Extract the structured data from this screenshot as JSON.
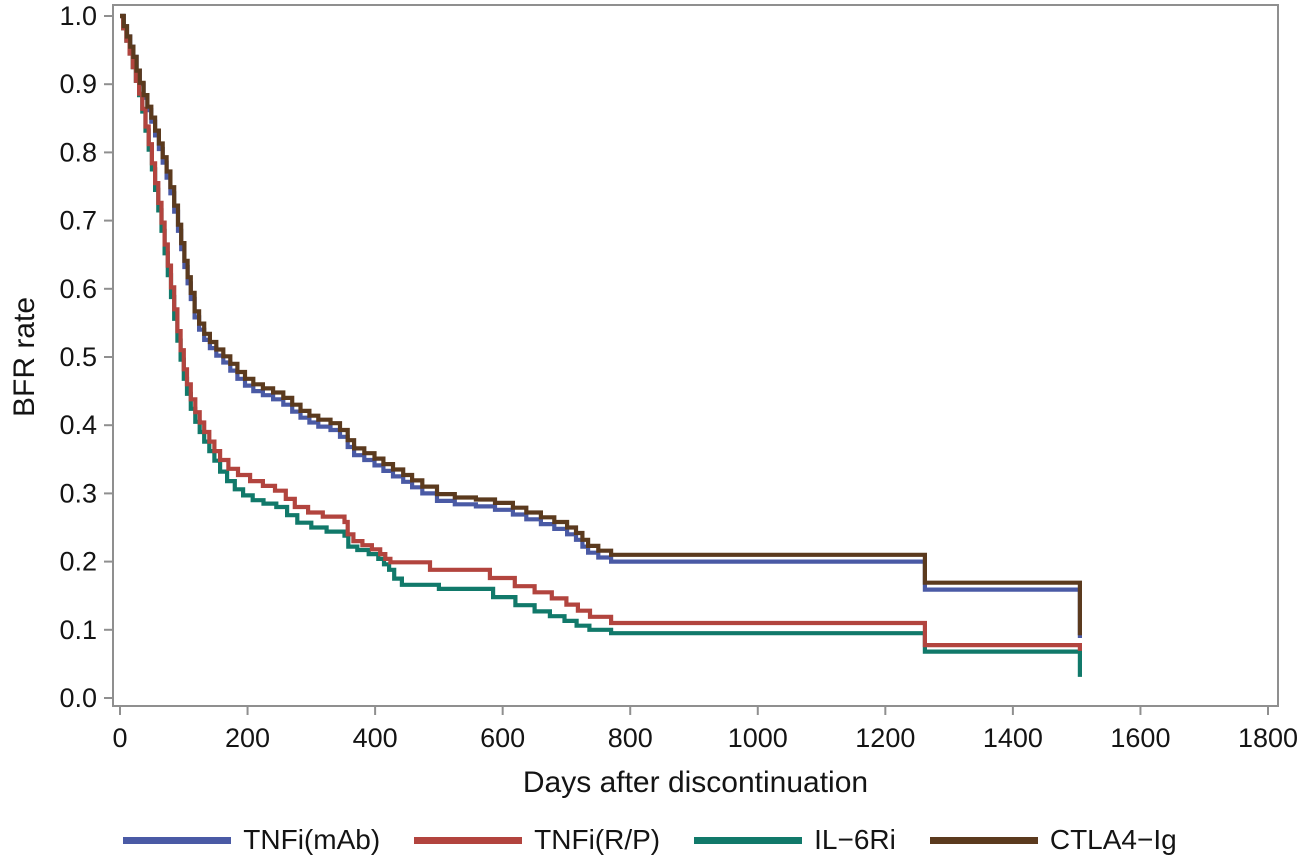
{
  "figure": {
    "background_color": "#ffffff",
    "axis_line_color": "#8f8f8f",
    "tick_text_color": "#141414"
  },
  "chart_data": {
    "type": "line",
    "subtype": "kaplan-meier-step-curves",
    "title": "",
    "xlabel": "Days after discontinuation",
    "ylabel": "BFR rate",
    "xlim": [
      0,
      1800
    ],
    "ylim": [
      0.0,
      1.0
    ],
    "x_tick_labels": [
      "0",
      "200",
      "400",
      "600",
      "800",
      "1000",
      "1200",
      "1400",
      "1600",
      "1800"
    ],
    "x_tick_values": [
      0,
      200,
      400,
      600,
      800,
      1000,
      1200,
      1400,
      1600,
      1800
    ],
    "y_tick_labels": [
      "0.0",
      "0.1",
      "0.2",
      "0.3",
      "0.4",
      "0.5",
      "0.6",
      "0.7",
      "0.8",
      "0.9",
      "1.0"
    ],
    "y_tick_values": [
      0.0,
      0.1,
      0.2,
      0.3,
      0.4,
      0.5,
      0.6,
      0.7,
      0.8,
      0.9,
      1.0
    ],
    "grid": false,
    "legend_position": "bottom",
    "draw_order": [
      0,
      2,
      1,
      3
    ],
    "series": [
      {
        "name": "TNFi(mAb)",
        "color": "#4a5aa5",
        "points": [
          [
            0,
            1.0
          ],
          [
            6,
            0.985
          ],
          [
            11,
            0.97
          ],
          [
            16,
            0.955
          ],
          [
            21,
            0.94
          ],
          [
            26,
            0.92
          ],
          [
            31,
            0.9
          ],
          [
            37,
            0.88
          ],
          [
            43,
            0.862
          ],
          [
            49,
            0.845
          ],
          [
            55,
            0.825
          ],
          [
            61,
            0.805
          ],
          [
            67,
            0.785
          ],
          [
            73,
            0.763
          ],
          [
            79,
            0.74
          ],
          [
            85,
            0.713
          ],
          [
            91,
            0.685
          ],
          [
            96,
            0.658
          ],
          [
            101,
            0.632
          ],
          [
            106,
            0.608
          ],
          [
            111,
            0.585
          ],
          [
            117,
            0.558
          ],
          [
            124,
            0.54
          ],
          [
            132,
            0.525
          ],
          [
            141,
            0.513
          ],
          [
            151,
            0.502
          ],
          [
            162,
            0.492
          ],
          [
            173,
            0.48
          ],
          [
            184,
            0.468
          ],
          [
            196,
            0.458
          ],
          [
            209,
            0.45
          ],
          [
            224,
            0.444
          ],
          [
            240,
            0.438
          ],
          [
            256,
            0.43
          ],
          [
            270,
            0.42
          ],
          [
            283,
            0.411
          ],
          [
            297,
            0.404
          ],
          [
            311,
            0.398
          ],
          [
            330,
            0.393
          ],
          [
            345,
            0.383
          ],
          [
            357,
            0.368
          ],
          [
            367,
            0.356
          ],
          [
            383,
            0.349
          ],
          [
            399,
            0.341
          ],
          [
            413,
            0.333
          ],
          [
            428,
            0.325
          ],
          [
            444,
            0.317
          ],
          [
            458,
            0.309
          ],
          [
            474,
            0.3
          ],
          [
            497,
            0.289
          ],
          [
            525,
            0.284
          ],
          [
            558,
            0.281
          ],
          [
            588,
            0.276
          ],
          [
            616,
            0.269
          ],
          [
            637,
            0.262
          ],
          [
            660,
            0.255
          ],
          [
            681,
            0.248
          ],
          [
            701,
            0.24
          ],
          [
            715,
            0.232
          ],
          [
            725,
            0.222
          ],
          [
            734,
            0.213
          ],
          [
            750,
            0.206
          ],
          [
            770,
            0.2
          ],
          [
            1262,
            0.159
          ],
          [
            1505,
            0.088
          ]
        ]
      },
      {
        "name": "TNFi(R/P)",
        "color": "#b2443e",
        "points": [
          [
            0,
            1.0
          ],
          [
            5,
            0.982
          ],
          [
            10,
            0.964
          ],
          [
            15,
            0.945
          ],
          [
            20,
            0.925
          ],
          [
            25,
            0.905
          ],
          [
            30,
            0.886
          ],
          [
            35,
            0.864
          ],
          [
            40,
            0.838
          ],
          [
            45,
            0.812
          ],
          [
            50,
            0.784
          ],
          [
            55,
            0.755
          ],
          [
            60,
            0.726
          ],
          [
            65,
            0.697
          ],
          [
            70,
            0.665
          ],
          [
            75,
            0.634
          ],
          [
            80,
            0.602
          ],
          [
            85,
            0.57
          ],
          [
            90,
            0.538
          ],
          [
            95,
            0.51
          ],
          [
            100,
            0.482
          ],
          [
            105,
            0.46
          ],
          [
            111,
            0.438
          ],
          [
            118,
            0.419
          ],
          [
            125,
            0.404
          ],
          [
            132,
            0.39
          ],
          [
            140,
            0.376
          ],
          [
            148,
            0.362
          ],
          [
            157,
            0.349
          ],
          [
            170,
            0.336
          ],
          [
            185,
            0.327
          ],
          [
            204,
            0.318
          ],
          [
            224,
            0.311
          ],
          [
            243,
            0.304
          ],
          [
            260,
            0.292
          ],
          [
            274,
            0.28
          ],
          [
            295,
            0.272
          ],
          [
            318,
            0.266
          ],
          [
            352,
            0.258
          ],
          [
            357,
            0.24
          ],
          [
            366,
            0.23
          ],
          [
            380,
            0.224
          ],
          [
            395,
            0.218
          ],
          [
            408,
            0.211
          ],
          [
            416,
            0.204
          ],
          [
            424,
            0.199
          ],
          [
            486,
            0.188
          ],
          [
            580,
            0.176
          ],
          [
            619,
            0.164
          ],
          [
            650,
            0.155
          ],
          [
            677,
            0.146
          ],
          [
            700,
            0.137
          ],
          [
            718,
            0.128
          ],
          [
            737,
            0.119
          ],
          [
            770,
            0.11
          ],
          [
            1262,
            0.0775
          ],
          [
            1505,
            0.069
          ]
        ]
      },
      {
        "name": "IL−6Ri",
        "color": "#11796a",
        "points": [
          [
            0,
            1.0
          ],
          [
            5,
            0.982
          ],
          [
            10,
            0.964
          ],
          [
            15,
            0.945
          ],
          [
            20,
            0.925
          ],
          [
            25,
            0.905
          ],
          [
            30,
            0.884
          ],
          [
            35,
            0.86
          ],
          [
            40,
            0.832
          ],
          [
            45,
            0.804
          ],
          [
            50,
            0.775
          ],
          [
            55,
            0.745
          ],
          [
            60,
            0.715
          ],
          [
            65,
            0.685
          ],
          [
            70,
            0.652
          ],
          [
            75,
            0.62
          ],
          [
            80,
            0.588
          ],
          [
            85,
            0.556
          ],
          [
            90,
            0.524
          ],
          [
            95,
            0.496
          ],
          [
            100,
            0.468
          ],
          [
            105,
            0.446
          ],
          [
            111,
            0.424
          ],
          [
            118,
            0.405
          ],
          [
            125,
            0.39
          ],
          [
            132,
            0.376
          ],
          [
            140,
            0.362
          ],
          [
            148,
            0.348
          ],
          [
            157,
            0.332
          ],
          [
            168,
            0.318
          ],
          [
            180,
            0.306
          ],
          [
            193,
            0.297
          ],
          [
            208,
            0.29
          ],
          [
            225,
            0.285
          ],
          [
            245,
            0.28
          ],
          [
            262,
            0.268
          ],
          [
            278,
            0.257
          ],
          [
            300,
            0.25
          ],
          [
            324,
            0.244
          ],
          [
            352,
            0.238
          ],
          [
            358,
            0.222
          ],
          [
            372,
            0.217
          ],
          [
            390,
            0.211
          ],
          [
            405,
            0.204
          ],
          [
            414,
            0.196
          ],
          [
            422,
            0.188
          ],
          [
            430,
            0.175
          ],
          [
            442,
            0.166
          ],
          [
            500,
            0.16
          ],
          [
            585,
            0.148
          ],
          [
            620,
            0.136
          ],
          [
            650,
            0.127
          ],
          [
            674,
            0.12
          ],
          [
            697,
            0.113
          ],
          [
            716,
            0.106
          ],
          [
            736,
            0.1
          ],
          [
            770,
            0.095
          ],
          [
            1262,
            0.068
          ],
          [
            1505,
            0.031
          ]
        ]
      },
      {
        "name": "CTLA4−Ig",
        "color": "#5b3a1e",
        "points": [
          [
            0,
            1.0
          ],
          [
            6,
            0.985
          ],
          [
            11,
            0.97
          ],
          [
            16,
            0.955
          ],
          [
            21,
            0.94
          ],
          [
            26,
            0.92
          ],
          [
            31,
            0.902
          ],
          [
            37,
            0.884
          ],
          [
            43,
            0.867
          ],
          [
            49,
            0.851
          ],
          [
            55,
            0.832
          ],
          [
            61,
            0.813
          ],
          [
            67,
            0.793
          ],
          [
            73,
            0.772
          ],
          [
            79,
            0.749
          ],
          [
            85,
            0.722
          ],
          [
            91,
            0.694
          ],
          [
            96,
            0.667
          ],
          [
            101,
            0.641
          ],
          [
            106,
            0.617
          ],
          [
            111,
            0.594
          ],
          [
            117,
            0.567
          ],
          [
            124,
            0.549
          ],
          [
            132,
            0.534
          ],
          [
            141,
            0.522
          ],
          [
            151,
            0.511
          ],
          [
            162,
            0.501
          ],
          [
            173,
            0.49
          ],
          [
            184,
            0.478
          ],
          [
            196,
            0.468
          ],
          [
            209,
            0.46
          ],
          [
            224,
            0.454
          ],
          [
            240,
            0.448
          ],
          [
            256,
            0.44
          ],
          [
            270,
            0.43
          ],
          [
            283,
            0.421
          ],
          [
            297,
            0.414
          ],
          [
            311,
            0.408
          ],
          [
            330,
            0.403
          ],
          [
            345,
            0.393
          ],
          [
            357,
            0.378
          ],
          [
            367,
            0.366
          ],
          [
            383,
            0.359
          ],
          [
            399,
            0.351
          ],
          [
            413,
            0.343
          ],
          [
            428,
            0.335
          ],
          [
            444,
            0.327
          ],
          [
            458,
            0.319
          ],
          [
            474,
            0.31
          ],
          [
            497,
            0.299
          ],
          [
            525,
            0.294
          ],
          [
            558,
            0.291
          ],
          [
            588,
            0.286
          ],
          [
            616,
            0.279
          ],
          [
            637,
            0.272
          ],
          [
            660,
            0.265
          ],
          [
            681,
            0.258
          ],
          [
            701,
            0.25
          ],
          [
            715,
            0.242
          ],
          [
            725,
            0.232
          ],
          [
            734,
            0.223
          ],
          [
            750,
            0.216
          ],
          [
            770,
            0.21
          ],
          [
            1262,
            0.169
          ],
          [
            1505,
            0.092
          ]
        ]
      }
    ]
  },
  "legend": {
    "items": [
      {
        "label": "TNFi(mAb)",
        "color": "#4a5aa5"
      },
      {
        "label": "TNFi(R/P)",
        "color": "#b2443e"
      },
      {
        "label": "IL−6Ri",
        "color": "#11796a"
      },
      {
        "label": "CTLA4−Ig",
        "color": "#5b3a1e"
      }
    ]
  }
}
